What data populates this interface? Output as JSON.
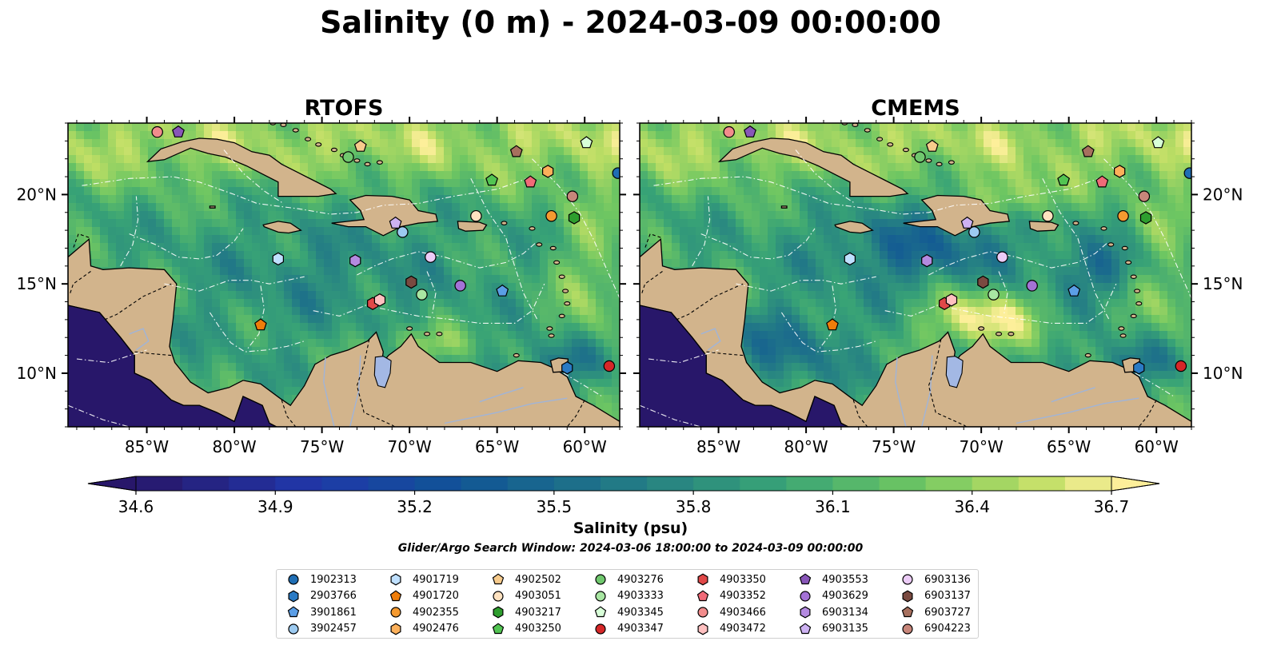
{
  "title": "Salinity (0 m) - 2024-03-09 00:00:00",
  "panels": [
    {
      "id": "rtofs",
      "title": "RTOFS"
    },
    {
      "id": "cmems",
      "title": "CMEMS"
    }
  ],
  "map": {
    "lon_range": [
      -89.5,
      -58.0
    ],
    "lat_range": [
      7.0,
      24.0
    ],
    "lon_ticks": [
      {
        "value": -85,
        "label": "85°W"
      },
      {
        "value": -80,
        "label": "80°W"
      },
      {
        "value": -75,
        "label": "75°W"
      },
      {
        "value": -70,
        "label": "70°W"
      },
      {
        "value": -65,
        "label": "65°W"
      },
      {
        "value": -60,
        "label": "60°W"
      }
    ],
    "lat_ticks": [
      {
        "value": 10,
        "label": "10°N"
      },
      {
        "value": 15,
        "label": "15°N"
      },
      {
        "value": 20,
        "label": "20°N"
      }
    ],
    "colors": {
      "land": "#d2b48c",
      "deep_pacific": "#28176a",
      "lake": "#a3b8e4",
      "river": "#a0b4d8",
      "eez": "#ffffff"
    }
  },
  "colorbar": {
    "label": "Salinity (psu)",
    "min": 34.6,
    "max": 36.7,
    "step": 0.1,
    "tick_labels": [
      "34.6",
      "34.9",
      "35.2",
      "35.5",
      "35.8",
      "36.1",
      "36.4",
      "36.7"
    ],
    "extend": "both",
    "colormap": "haline"
  },
  "search_window": "Glider/Argo Search Window: 2024-03-06 18:00:00 to 2024-03-09 00:00:00",
  "floats": [
    {
      "id": "1902313",
      "marker": "circle",
      "color": "#1f6eb4",
      "lon": -58.1,
      "lat": 21.2
    },
    {
      "id": "2903766",
      "marker": "hexagon",
      "color": "#2a7ac4",
      "lon": -61.0,
      "lat": 10.3
    },
    {
      "id": "3901861",
      "marker": "pentagon",
      "color": "#5b9ee6",
      "lon": -64.7,
      "lat": 14.6
    },
    {
      "id": "3902457",
      "marker": "circle",
      "color": "#9ccaf0",
      "lon": -70.4,
      "lat": 17.9
    },
    {
      "id": "4901719",
      "marker": "hexagon",
      "color": "#bfe0ff",
      "lon": -77.5,
      "lat": 16.4
    },
    {
      "id": "4901720",
      "marker": "pentagon",
      "color": "#ef7d0a",
      "lon": -78.5,
      "lat": 12.7
    },
    {
      "id": "4902355",
      "marker": "circle",
      "color": "#f59a30",
      "lon": -61.9,
      "lat": 18.8
    },
    {
      "id": "4902476",
      "marker": "hexagon",
      "color": "#fcb05a",
      "lon": -62.1,
      "lat": 21.3
    },
    {
      "id": "4902502",
      "marker": "pentagon",
      "color": "#f7cb8c",
      "lon": -72.8,
      "lat": 22.7
    },
    {
      "id": "4903051",
      "marker": "circle",
      "color": "#ffe2c0",
      "lon": -66.2,
      "lat": 18.8
    },
    {
      "id": "4903217",
      "marker": "hexagon",
      "color": "#2e9e2e",
      "lon": -60.6,
      "lat": 18.7
    },
    {
      "id": "4903250",
      "marker": "pentagon",
      "color": "#52c452",
      "lon": -65.3,
      "lat": 20.8
    },
    {
      "id": "4903276",
      "marker": "circle",
      "color": "#70c86e",
      "lon": -73.5,
      "lat": 22.1
    },
    {
      "id": "4903333",
      "marker": "circle",
      "color": "#a8e6a2",
      "lon": -69.3,
      "lat": 14.4
    },
    {
      "id": "4903345",
      "marker": "pentagon",
      "color": "#d8ffd8",
      "lon": -59.9,
      "lat": 22.9
    },
    {
      "id": "4903347",
      "marker": "circle",
      "color": "#d62728",
      "lon": -58.6,
      "lat": 10.4
    },
    {
      "id": "4903350",
      "marker": "hexagon",
      "color": "#e04848",
      "lon": -72.1,
      "lat": 13.9
    },
    {
      "id": "4903352",
      "marker": "pentagon",
      "color": "#f06a78",
      "lon": -63.1,
      "lat": 20.7
    },
    {
      "id": "4903466",
      "marker": "circle",
      "color": "#f28c8c",
      "lon": -84.4,
      "lat": 23.5
    },
    {
      "id": "4903472",
      "marker": "hexagon",
      "color": "#ffc0c0",
      "lon": -71.7,
      "lat": 14.1
    },
    {
      "id": "4903553",
      "marker": "pentagon",
      "color": "#8856b8",
      "lon": -83.2,
      "lat": 23.5
    },
    {
      "id": "4903629",
      "marker": "circle",
      "color": "#a472d6",
      "lon": -67.1,
      "lat": 14.9
    },
    {
      "id": "6903134",
      "marker": "hexagon",
      "color": "#b48ae0",
      "lon": -73.1,
      "lat": 16.3
    },
    {
      "id": "6903135",
      "marker": "pentagon",
      "color": "#cdb2f2",
      "lon": -70.8,
      "lat": 18.4
    },
    {
      "id": "6903136",
      "marker": "circle",
      "color": "#ecccf7",
      "lon": -68.8,
      "lat": 16.5
    },
    {
      "id": "6903137",
      "marker": "hexagon",
      "color": "#7a4a40",
      "lon": -69.9,
      "lat": 15.1
    },
    {
      "id": "6903727",
      "marker": "pentagon",
      "color": "#a7705e",
      "lon": -63.9,
      "lat": 22.4
    },
    {
      "id": "6904223",
      "marker": "circle",
      "color": "#c8867a",
      "lon": -60.7,
      "lat": 19.9
    }
  ]
}
